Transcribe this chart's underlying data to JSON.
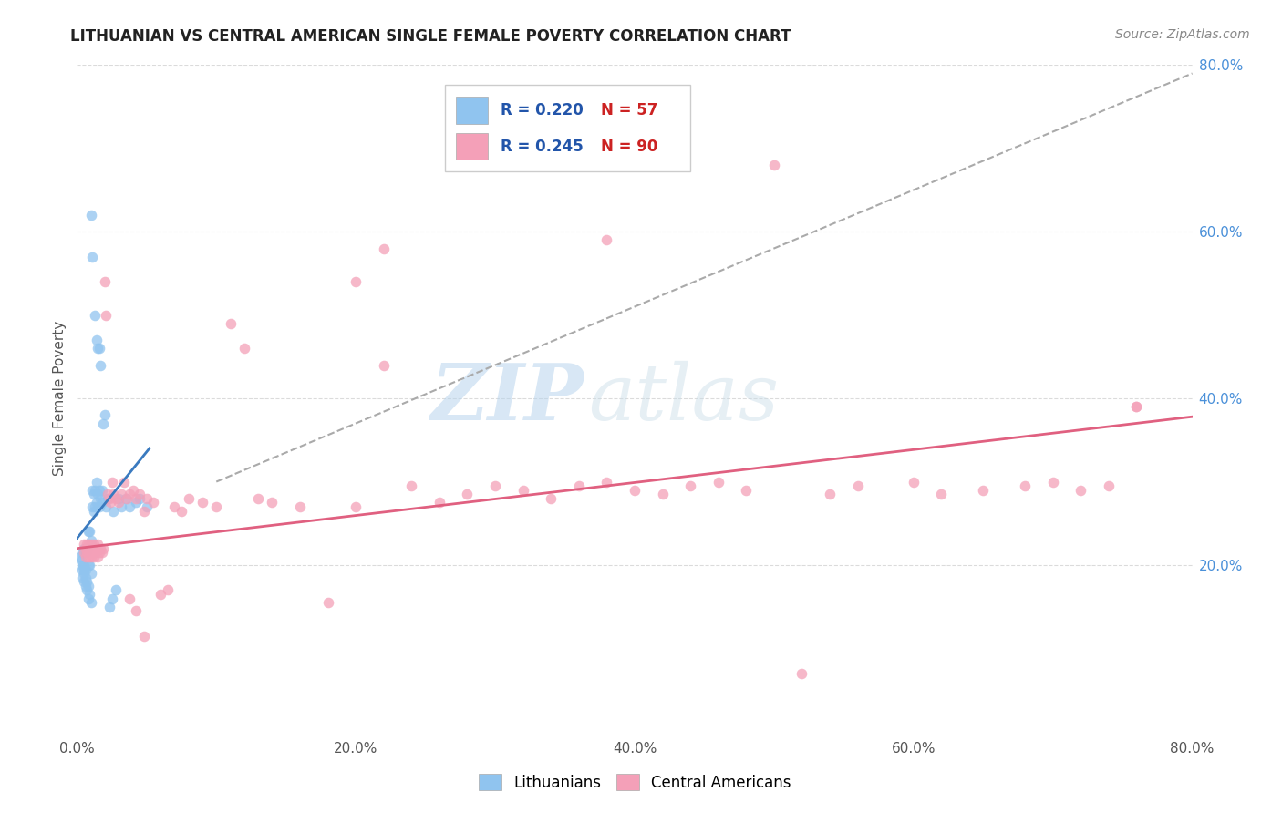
{
  "title": "LITHUANIAN VS CENTRAL AMERICAN SINGLE FEMALE POVERTY CORRELATION CHART",
  "source": "Source: ZipAtlas.com",
  "ylabel": "Single Female Poverty",
  "xlim": [
    0.0,
    0.8
  ],
  "ylim": [
    0.0,
    0.8
  ],
  "background_color": "#ffffff",
  "grid_color": "#cccccc",
  "watermark_zip": "ZIP",
  "watermark_atlas": "atlas",
  "color_lith": "#90c4ef",
  "color_ca": "#f4a0b8",
  "color_lith_line": "#3a7abf",
  "color_ca_line": "#e06080",
  "color_dashed": "#aaaaaa",
  "lith_x": [
    0.002,
    0.003,
    0.003,
    0.004,
    0.004,
    0.004,
    0.005,
    0.005,
    0.005,
    0.005,
    0.005,
    0.006,
    0.006,
    0.006,
    0.006,
    0.007,
    0.007,
    0.007,
    0.008,
    0.008,
    0.008,
    0.008,
    0.009,
    0.009,
    0.009,
    0.01,
    0.01,
    0.01,
    0.011,
    0.011,
    0.012,
    0.012,
    0.013,
    0.013,
    0.014,
    0.014,
    0.015,
    0.016,
    0.016,
    0.017,
    0.018,
    0.018,
    0.019,
    0.02,
    0.021,
    0.022,
    0.023,
    0.025,
    0.026,
    0.028,
    0.03,
    0.032,
    0.035,
    0.038,
    0.042,
    0.045,
    0.05
  ],
  "lith_y": [
    0.21,
    0.195,
    0.205,
    0.185,
    0.2,
    0.215,
    0.18,
    0.19,
    0.195,
    0.2,
    0.22,
    0.175,
    0.185,
    0.195,
    0.215,
    0.17,
    0.18,
    0.22,
    0.16,
    0.175,
    0.2,
    0.24,
    0.165,
    0.2,
    0.24,
    0.155,
    0.19,
    0.23,
    0.27,
    0.29,
    0.265,
    0.285,
    0.27,
    0.29,
    0.275,
    0.3,
    0.285,
    0.27,
    0.29,
    0.28,
    0.275,
    0.29,
    0.37,
    0.38,
    0.27,
    0.28,
    0.15,
    0.16,
    0.265,
    0.17,
    0.28,
    0.27,
    0.28,
    0.27,
    0.275,
    0.28,
    0.27
  ],
  "lith_outliers_x": [
    0.01,
    0.011,
    0.013,
    0.014,
    0.015,
    0.016,
    0.017
  ],
  "lith_outliers_y": [
    0.62,
    0.57,
    0.5,
    0.47,
    0.46,
    0.46,
    0.44
  ],
  "ca_x": [
    0.005,
    0.005,
    0.006,
    0.006,
    0.007,
    0.007,
    0.008,
    0.008,
    0.009,
    0.009,
    0.01,
    0.01,
    0.011,
    0.011,
    0.012,
    0.012,
    0.013,
    0.014,
    0.015,
    0.015,
    0.016,
    0.017,
    0.018,
    0.019,
    0.02,
    0.021,
    0.022,
    0.023,
    0.024,
    0.025,
    0.026,
    0.028,
    0.03,
    0.032,
    0.034,
    0.036,
    0.038,
    0.04,
    0.042,
    0.045,
    0.048,
    0.05,
    0.055,
    0.06,
    0.065,
    0.07,
    0.075,
    0.08,
    0.09,
    0.1,
    0.11,
    0.12,
    0.13,
    0.14,
    0.16,
    0.18,
    0.2,
    0.22,
    0.24,
    0.26,
    0.28,
    0.3,
    0.32,
    0.34,
    0.36,
    0.38,
    0.4,
    0.42,
    0.44,
    0.46,
    0.48,
    0.5,
    0.52,
    0.54,
    0.56,
    0.6,
    0.62,
    0.65,
    0.68,
    0.7,
    0.72,
    0.74,
    0.76,
    0.038,
    0.042,
    0.048,
    0.2,
    0.22,
    0.38,
    0.76
  ],
  "ca_y": [
    0.215,
    0.225,
    0.21,
    0.22,
    0.215,
    0.225,
    0.21,
    0.225,
    0.215,
    0.22,
    0.21,
    0.225,
    0.215,
    0.22,
    0.21,
    0.225,
    0.215,
    0.22,
    0.21,
    0.225,
    0.215,
    0.22,
    0.215,
    0.22,
    0.54,
    0.5,
    0.285,
    0.28,
    0.275,
    0.3,
    0.285,
    0.28,
    0.275,
    0.285,
    0.3,
    0.28,
    0.285,
    0.29,
    0.28,
    0.285,
    0.265,
    0.28,
    0.275,
    0.165,
    0.17,
    0.27,
    0.265,
    0.28,
    0.275,
    0.27,
    0.49,
    0.46,
    0.28,
    0.275,
    0.27,
    0.155,
    0.27,
    0.58,
    0.295,
    0.275,
    0.285,
    0.295,
    0.29,
    0.28,
    0.295,
    0.3,
    0.29,
    0.285,
    0.295,
    0.3,
    0.29,
    0.68,
    0.07,
    0.285,
    0.295,
    0.3,
    0.285,
    0.29,
    0.295,
    0.3,
    0.29,
    0.295,
    0.39,
    0.16,
    0.145,
    0.115,
    0.54,
    0.44,
    0.59,
    0.39
  ],
  "lith_line_x": [
    0.0,
    0.052
  ],
  "lith_line_y": [
    0.232,
    0.34
  ],
  "ca_line_x": [
    0.0,
    0.8
  ],
  "ca_line_y": [
    0.22,
    0.378
  ],
  "dash_line_x": [
    0.1,
    0.8
  ],
  "dash_line_y": [
    0.3,
    0.79
  ]
}
